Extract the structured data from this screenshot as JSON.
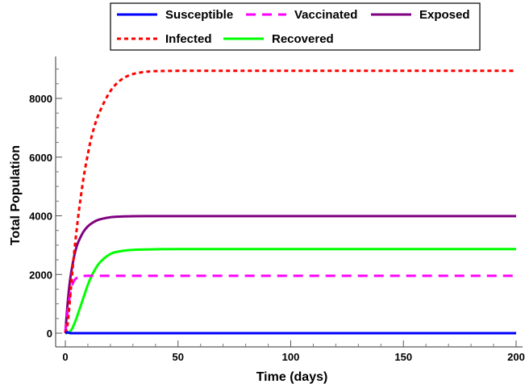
{
  "chart_data": {
    "type": "line",
    "title": "",
    "xlabel": "Time (days)",
    "ylabel": "Total Population",
    "xlim": [
      0,
      200
    ],
    "ylim": [
      0,
      9000
    ],
    "xticks": [
      0,
      50,
      100,
      150,
      200
    ],
    "yticks": [
      0,
      2000,
      4000,
      6000,
      8000
    ],
    "grid": false,
    "legend_position": "top",
    "series": [
      {
        "name": "Susceptible",
        "color": "#0000ff",
        "style": "solid",
        "x": [
          0,
          1,
          2,
          5,
          10,
          50,
          100,
          150,
          200
        ],
        "y": [
          0,
          30,
          5,
          0,
          0,
          0,
          0,
          0,
          0
        ]
      },
      {
        "name": "Vaccinated",
        "color": "#ff00ff",
        "style": "dashed",
        "x": [
          0,
          1,
          2,
          3,
          4,
          5,
          6,
          7,
          8,
          10,
          15,
          20,
          50,
          100,
          150,
          200
        ],
        "y": [
          0,
          700,
          1280,
          1630,
          1800,
          1880,
          1920,
          1940,
          1950,
          1955,
          1955,
          1955,
          1955,
          1955,
          1955,
          1955
        ]
      },
      {
        "name": "Exposed",
        "color": "#800080",
        "style": "solid",
        "x": [
          0,
          1,
          2,
          3,
          4,
          5,
          6,
          8,
          10,
          12,
          15,
          20,
          25,
          30,
          40,
          50,
          60,
          100,
          150,
          200
        ],
        "y": [
          0,
          1000,
          1750,
          2250,
          2650,
          2950,
          3150,
          3450,
          3640,
          3760,
          3870,
          3950,
          3975,
          3985,
          3990,
          3990,
          3990,
          3990,
          3990,
          3990
        ]
      },
      {
        "name": "Infected",
        "color": "#ff0000",
        "style": "dotted",
        "x": [
          0,
          1,
          2,
          3,
          4,
          5,
          6,
          8,
          10,
          12,
          15,
          20,
          25,
          30,
          35,
          40,
          50,
          60,
          100,
          150,
          200
        ],
        "y": [
          0,
          300,
          1100,
          2000,
          2800,
          3500,
          4150,
          5250,
          6100,
          6800,
          7500,
          8250,
          8650,
          8830,
          8900,
          8930,
          8940,
          8940,
          8940,
          8940,
          8940
        ]
      },
      {
        "name": "Recovered",
        "color": "#00ff00",
        "style": "solid",
        "x": [
          0,
          1,
          2,
          3,
          4,
          5,
          6,
          8,
          10,
          12,
          15,
          20,
          25,
          30,
          40,
          50,
          100,
          150,
          200
        ],
        "y": [
          0,
          10,
          50,
          150,
          320,
          520,
          750,
          1200,
          1650,
          2000,
          2380,
          2700,
          2800,
          2840,
          2860,
          2865,
          2865,
          2865,
          2865
        ]
      }
    ]
  }
}
